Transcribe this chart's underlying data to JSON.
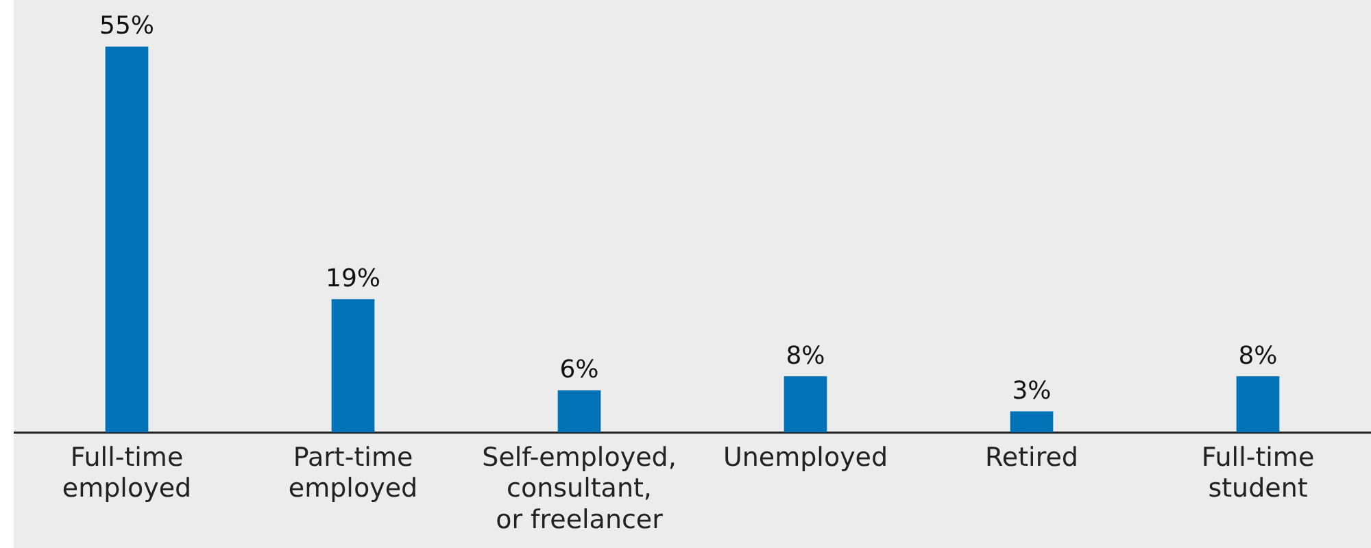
{
  "chart_data": {
    "type": "bar",
    "categories": [
      "Full-time employed",
      "Part-time employed",
      "Self-employed, consultant, or freelancer",
      "Unemployed",
      "Retired",
      "Full-time student"
    ],
    "values": [
      55,
      19,
      6,
      8,
      3,
      8
    ],
    "value_labels": [
      "55%",
      "19%",
      "6%",
      "8%",
      "3%",
      "8%"
    ],
    "color": "#0072b5",
    "grid": false,
    "legend": false
  }
}
